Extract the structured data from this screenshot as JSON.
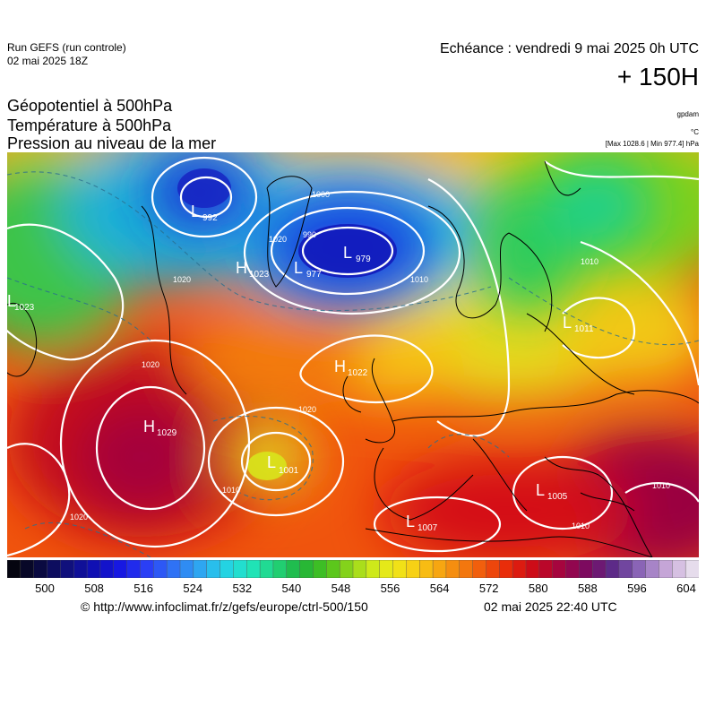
{
  "header": {
    "run_title": "Run GEFS (run controle)",
    "run_date": "02 mai 2025 18Z",
    "echeance": "Echéance : vendredi 9 mai 2025 0h UTC",
    "horizon": "+ 150H"
  },
  "titles": {
    "line1": "Géopotentiel à 500hPa",
    "line2": "Température à 500hPa",
    "line3": "Pression au niveau de la mer"
  },
  "units": {
    "geopotential": "gpdam",
    "temperature": "°C",
    "maxmin": "[Max 1028.6 | Min 977.4] hPa"
  },
  "colorbar": {
    "ticks": [
      "500",
      "508",
      "516",
      "524",
      "532",
      "540",
      "548",
      "556",
      "564",
      "572",
      "580",
      "588",
      "596",
      "604"
    ],
    "colors": [
      "#050510",
      "#0a0a40",
      "#10107a",
      "#1010b0",
      "#1515e0",
      "#2a3af5",
      "#2f6cf5",
      "#2f9ff2",
      "#25cfe8",
      "#20e6c2",
      "#22d47e",
      "#1fb43c",
      "#49c21c",
      "#98d81b",
      "#dfee1a",
      "#f6dd16",
      "#f8b412",
      "#f4860f",
      "#f0580d",
      "#e8260a",
      "#c9081a",
      "#a20542",
      "#7a0a62",
      "#5b2c8a",
      "#8c66b8",
      "#c6a6d8",
      "#e6dcec"
    ]
  },
  "pressure_centers": [
    {
      "type": "L",
      "value": "992"
    },
    {
      "type": "L",
      "value": "977"
    },
    {
      "type": "L",
      "value": "979"
    },
    {
      "type": "H",
      "value": "1023"
    },
    {
      "type": "L",
      "value": "1023"
    },
    {
      "type": "H",
      "value": "1022"
    },
    {
      "type": "H",
      "value": "1029"
    },
    {
      "type": "L",
      "value": "1001"
    },
    {
      "type": "L",
      "value": "1005"
    },
    {
      "type": "L",
      "value": "1007"
    },
    {
      "type": "L",
      "value": "1011"
    }
  ],
  "isobar_labels": [
    "1000",
    "990",
    "1020",
    "1010",
    "1020",
    "1020",
    "1010",
    "1020",
    "1020",
    "1010",
    "1010",
    "1010"
  ],
  "footer": {
    "source": "© http://www.infoclimat.fr/z/gefs/europe/ctrl-500/150",
    "generated": "02 mai 2025 22:40 UTC"
  }
}
